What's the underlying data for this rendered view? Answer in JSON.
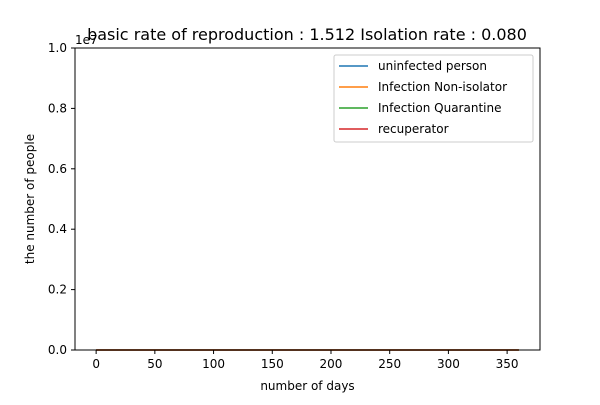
{
  "chart_data": {
    "type": "line",
    "title": "basic rate of reproduction : 1.512  Isolation rate : 0.080",
    "xlabel": "number of days",
    "ylabel": "the number of people",
    "y_offset_label": "1e7",
    "xlim": [
      -18,
      378
    ],
    "ylim": [
      0,
      1.0
    ],
    "x_ticks": [
      0,
      50,
      100,
      150,
      200,
      250,
      300,
      350
    ],
    "y_ticks": [
      0.0,
      0.2,
      0.4,
      0.6,
      0.8,
      1.0
    ],
    "x_tick_labels": [
      "0",
      "50",
      "100",
      "150",
      "200",
      "250",
      "300",
      "350"
    ],
    "y_tick_labels": [
      "0.0",
      "0.2",
      "0.4",
      "0.6",
      "0.8",
      "1.0"
    ],
    "grid": false,
    "legend_position": "upper right",
    "x": [
      0,
      360
    ],
    "series": [
      {
        "name": "uninfected person",
        "color": "#1f77b4",
        "values": [
          0.0,
          0.0
        ]
      },
      {
        "name": "Infection Non-isolator",
        "color": "#ff7f0e",
        "values": [
          0.0,
          0.0
        ]
      },
      {
        "name": "Infection Quarantine",
        "color": "#2ca02c",
        "values": [
          0.0,
          0.0
        ]
      },
      {
        "name": "recuperator",
        "color": "#d62728",
        "values": [
          0.0,
          0.0
        ]
      }
    ]
  }
}
